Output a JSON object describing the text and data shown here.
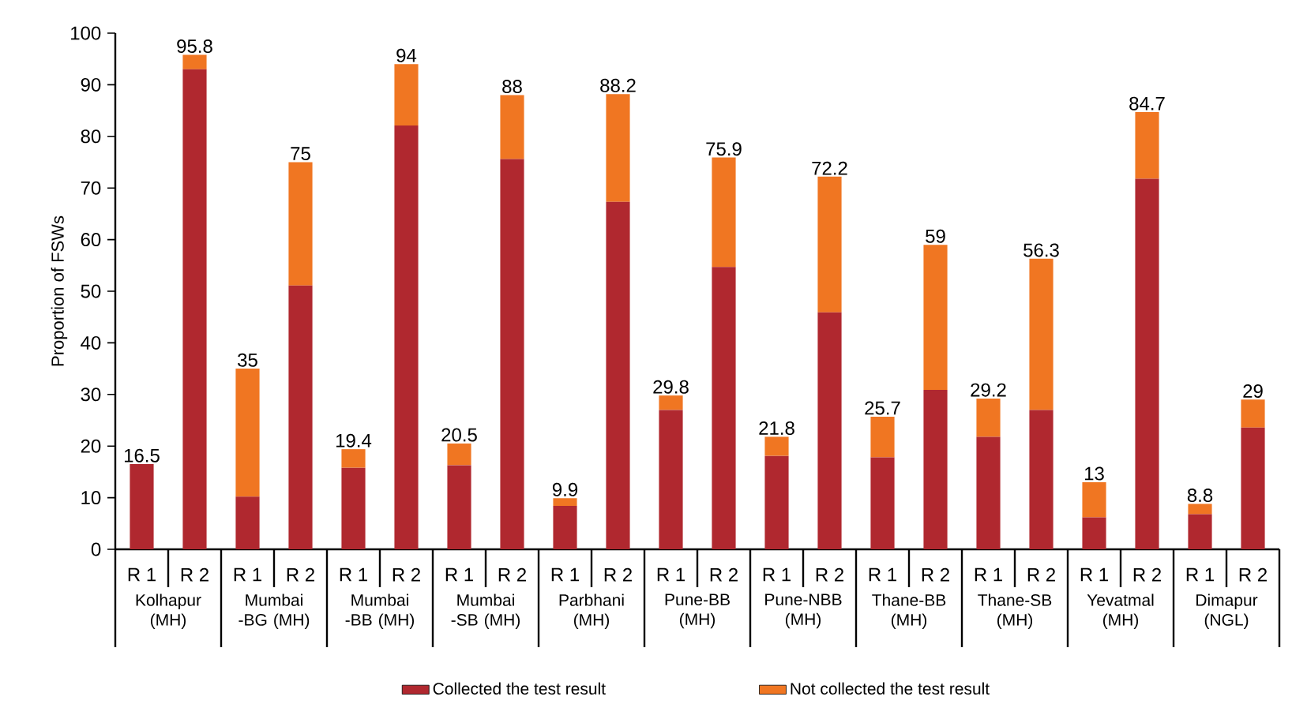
{
  "chart_data": {
    "type": "bar",
    "stacked": true,
    "ylabel": "Proportion of FSWs",
    "categories": [
      "R 1",
      "R 2",
      "R 1",
      "R 2",
      "R 1",
      "R 2",
      "R 1",
      "R 2",
      "R 1",
      "R 2",
      "R 1",
      "R 2",
      "R 1",
      "R 2",
      "R 1",
      "R 2",
      "R 1",
      "R 2",
      "R 1",
      "R 2",
      "R 1",
      "R 2"
    ],
    "series": [
      {
        "name": "Collected the test result",
        "color": "#b0282f",
        "values": [
          16.5,
          93.0,
          10.2,
          51.1,
          15.8,
          82.1,
          16.3,
          75.6,
          8.4,
          67.3,
          27.0,
          54.7,
          18.1,
          45.9,
          17.8,
          30.9,
          21.8,
          27.0,
          6.2,
          71.8,
          6.8,
          23.6
        ]
      },
      {
        "name": "Not collected the test result",
        "color": "#f07622",
        "values": [
          0,
          2.8,
          24.8,
          23.9,
          3.6,
          11.9,
          4.2,
          12.4,
          1.5,
          20.9,
          2.8,
          21.2,
          3.7,
          26.3,
          7.9,
          28.1,
          7.4,
          29.3,
          6.8,
          12.9,
          2.0,
          5.4
        ]
      }
    ],
    "totals": [
      "16.5",
      "95.8",
      "35",
      "75",
      "19.4",
      "94",
      "20.5",
      "88",
      "9.9",
      "88.2",
      "29.8",
      "75.9",
      "21.8",
      "72.2",
      "25.7",
      "59",
      "29.2",
      "56.3",
      "13",
      "84.7",
      "8.8",
      "29"
    ],
    "annotations": [
      "Kolhapur (MH)",
      "Mumbai -BG (MH)",
      "Mumbai -BB (MH)",
      "Mumbai -SB (MH)",
      "Parbhani (MH)",
      "Pune-BB (MH)",
      "Pune-NBB (MH)",
      "Thane-BB (MH)",
      "Thane-SB (MH)",
      "Yevatmal (MH)",
      "Dimapur (NGL)"
    ],
    "ylim": [
      0,
      100
    ],
    "yticks": [
      0,
      10,
      20,
      30,
      40,
      50,
      60,
      70,
      80,
      90,
      100
    ],
    "legend": "bottom"
  }
}
